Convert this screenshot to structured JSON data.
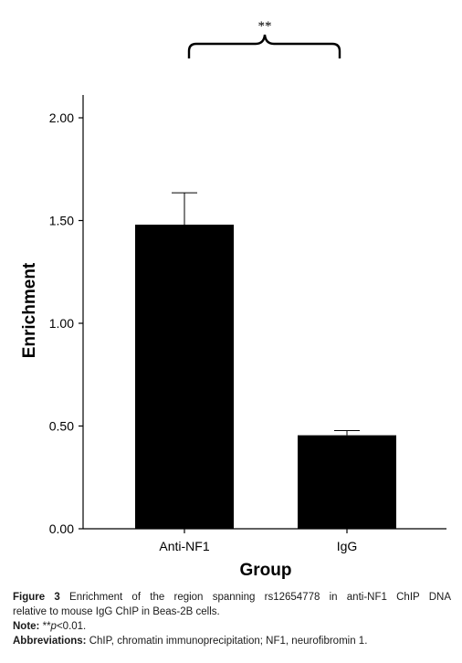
{
  "chart_data": {
    "type": "bar",
    "categories": [
      "Anti-NF1",
      "IgG"
    ],
    "values": [
      1.48,
      0.455
    ],
    "error_upper": [
      1.635,
      0.478
    ],
    "xlabel": "Group",
    "ylabel": "Enrichment",
    "ylim": [
      0,
      2.0
    ],
    "yticks": [
      "0.00",
      "0.50",
      "1.00",
      "1.50",
      "2.00"
    ],
    "grid": false,
    "bar_color": "#000000",
    "significance": {
      "label": "**",
      "between": [
        "Anti-NF1",
        "IgG"
      ]
    }
  },
  "caption": {
    "figure_label": "Figure 3",
    "figure_text_line1": "Enrichment of the region spanning rs12654778 in anti-NF1 ChIP DNA",
    "figure_text_line2": "relative to mouse IgG ChIP in Beas-2B cells.",
    "note_label": "Note:",
    "note_stars": "**",
    "note_p": "p",
    "note_rest": "<0.01.",
    "abbr_label": "Abbreviations:",
    "abbr_text": "ChIP, chromatin immunoprecipitation; NF1, neurofibromin 1."
  }
}
